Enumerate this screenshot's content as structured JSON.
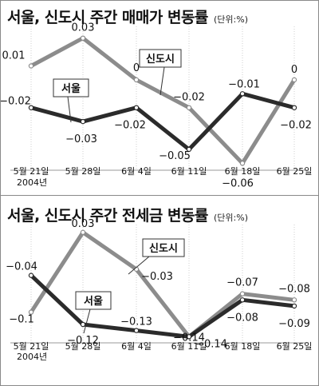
{
  "chart_data": [
    {
      "type": "line",
      "title": "서울, 신도시 주간 매매가 변동률",
      "unit": "(단위:%)",
      "categories": [
        "5월 21일",
        "5월 28일",
        "6월 4일",
        "6월 11일",
        "6월 18일",
        "6월 25일"
      ],
      "year_label": "2004년",
      "ylim": [
        -0.065,
        0.035
      ],
      "grid": false,
      "series": [
        {
          "name": "신도시",
          "values": [
            0.01,
            0.03,
            0,
            -0.02,
            -0.06,
            0
          ],
          "labels": [
            "0.01",
            "0.03",
            "0",
            "−0.02",
            "−0.06",
            "0"
          ],
          "color": "#8c8c8c"
        },
        {
          "name": "서울",
          "values": [
            -0.02,
            -0.03,
            -0.02,
            -0.05,
            -0.01,
            -0.02
          ],
          "labels": [
            "−0.02",
            "−0.03",
            "−0.02",
            "−0.05",
            "−0.01",
            "−0.02"
          ],
          "color": "#2b2b2b"
        }
      ]
    },
    {
      "type": "line",
      "title": "서울, 신도시 주간 전세금 변동률",
      "unit": "(단위:%)",
      "categories": [
        "5월 21일",
        "5월 28일",
        "6월 4일",
        "6월 11일",
        "6월 18일",
        "6월 25일"
      ],
      "year_label": "2004년",
      "ylim": [
        -0.15,
        0.035
      ],
      "grid": false,
      "series": [
        {
          "name": "신도시",
          "values": [
            -0.1,
            0.03,
            -0.03,
            -0.14,
            -0.07,
            -0.08
          ],
          "labels": [
            "−0.1",
            "0.03",
            "−0.03",
            "−0.14",
            "−0.07",
            "−0.08"
          ],
          "color": "#8c8c8c"
        },
        {
          "name": "서울",
          "values": [
            -0.04,
            -0.12,
            -0.13,
            -0.14,
            -0.08,
            -0.09
          ],
          "labels": [
            "−0.04",
            "−0.12",
            "−0.13",
            "−0.14",
            "−0.08",
            "−0.09"
          ],
          "color": "#2b2b2b"
        }
      ]
    }
  ]
}
